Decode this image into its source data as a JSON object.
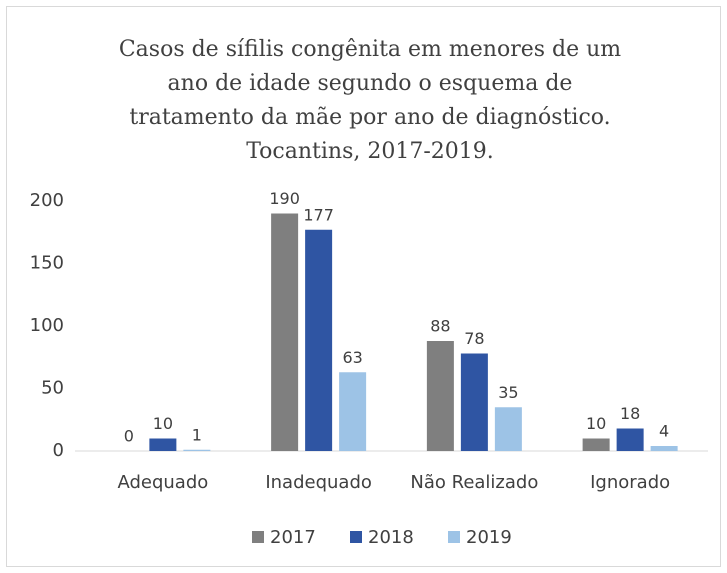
{
  "chart_data": {
    "type": "bar",
    "title": [
      "Casos de sífilis congênita em menores de um",
      "ano de idade segundo o esquema de",
      "tratamento da mãe por ano de diagnóstico.",
      "Tocantins, 2017-2019."
    ],
    "categories": [
      "Adequado",
      "Inadequado",
      "Não Realizado",
      "Ignorado"
    ],
    "series": [
      {
        "name": "2017",
        "color": "#7f7f7f",
        "values": [
          0,
          190,
          88,
          10
        ]
      },
      {
        "name": "2018",
        "color": "#2f55a3",
        "values": [
          10,
          177,
          78,
          18
        ]
      },
      {
        "name": "2019",
        "color": "#9dc3e6",
        "values": [
          1,
          63,
          35,
          4
        ]
      }
    ],
    "ylim": [
      0,
      200
    ],
    "yticks": [
      0,
      50,
      100,
      150,
      200
    ],
    "grid": false,
    "legend": "bottom"
  }
}
